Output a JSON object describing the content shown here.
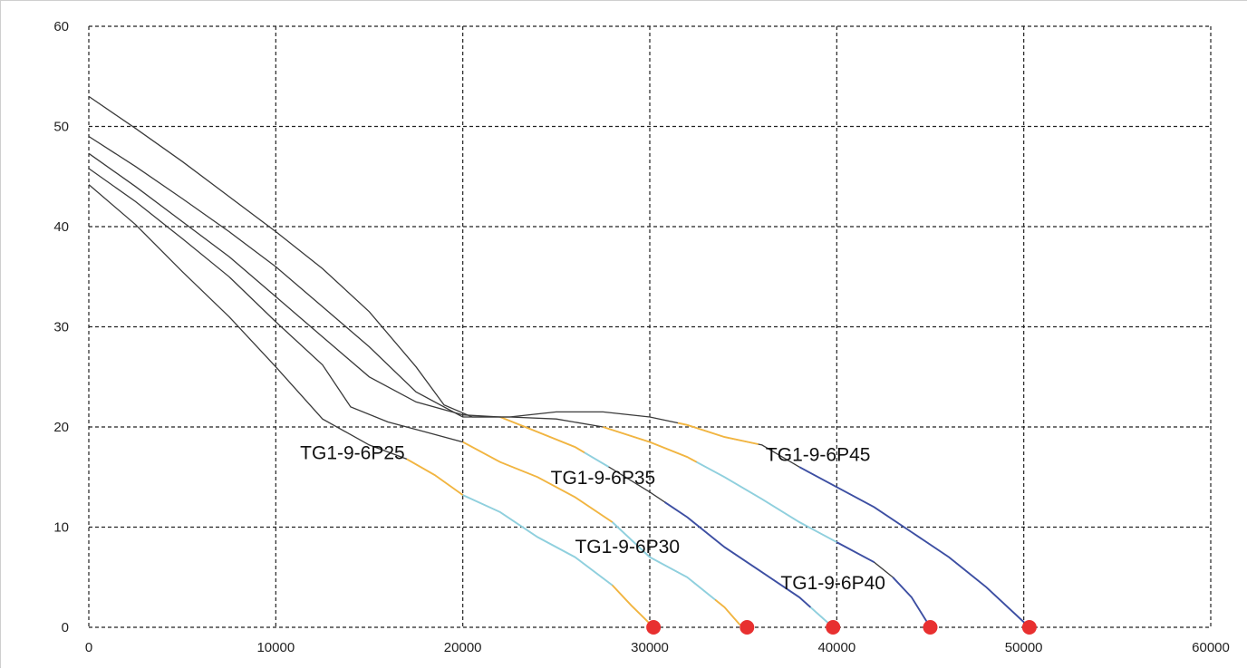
{
  "chart_data": {
    "type": "line",
    "title": "",
    "xlabel": "",
    "ylabel": "",
    "xlim": [
      0,
      60000
    ],
    "ylim": [
      0,
      60
    ],
    "x_ticks": [
      0,
      10000,
      20000,
      30000,
      40000,
      50000,
      60000
    ],
    "y_ticks": [
      0,
      10,
      20,
      30,
      40,
      50,
      60
    ],
    "grid": true,
    "colors": {
      "base": "#3a3a3a",
      "orange": "#f2b540",
      "cyan": "#8fd0de",
      "blue": "#3d4fa3",
      "marker": "#e83030"
    },
    "series": [
      {
        "name": "TG1-9-6P25",
        "points": [
          [
            0,
            44.2
          ],
          [
            2500,
            40.2
          ],
          [
            5000,
            35.5
          ],
          [
            7500,
            31
          ],
          [
            10000,
            26
          ],
          [
            12500,
            20.8
          ],
          [
            15000,
            18.2
          ],
          [
            17000,
            16.8
          ],
          [
            18500,
            15.2
          ],
          [
            20000,
            13.2
          ],
          [
            22000,
            11.5
          ],
          [
            24000,
            9
          ],
          [
            26000,
            7
          ],
          [
            28000,
            4.2
          ],
          [
            29000,
            2.2
          ],
          [
            30200,
            0
          ]
        ],
        "segments": [
          {
            "color": "orange",
            "from": 17000,
            "to": 20000
          },
          {
            "color": "cyan",
            "from": 20000,
            "to": 28000
          },
          {
            "color": "orange",
            "from": 28000,
            "to": 30200
          }
        ],
        "label": {
          "text": "TG1-9-6P25",
          "x": 11300,
          "y": 16.8
        },
        "end_marker": [
          30200,
          0
        ]
      },
      {
        "name": "TG1-9-6P30",
        "points": [
          [
            0,
            45.8
          ],
          [
            2500,
            42.5
          ],
          [
            5000,
            38.8
          ],
          [
            7500,
            35
          ],
          [
            10000,
            30.5
          ],
          [
            12500,
            26.2
          ],
          [
            14000,
            22
          ],
          [
            16000,
            20.5
          ],
          [
            18000,
            19.5
          ],
          [
            20000,
            18.5
          ],
          [
            22000,
            16.5
          ],
          [
            24000,
            15
          ],
          [
            26000,
            13
          ],
          [
            28000,
            10.5
          ],
          [
            30000,
            7
          ],
          [
            32000,
            5
          ],
          [
            34000,
            2
          ],
          [
            34800,
            0.3
          ],
          [
            35200,
            0
          ]
        ],
        "segments": [
          {
            "color": "orange",
            "from": 20000,
            "to": 28000
          },
          {
            "color": "cyan",
            "from": 28000,
            "to": 33500
          },
          {
            "color": "orange",
            "from": 33500,
            "to": 35200
          }
        ],
        "label": {
          "text": "TG1-9-6P30",
          "x": 26000,
          "y": 7.4
        },
        "end_marker": [
          35200,
          0
        ]
      },
      {
        "name": "TG1-9-6P35",
        "points": [
          [
            0,
            47.3
          ],
          [
            2500,
            44
          ],
          [
            5000,
            40.5
          ],
          [
            7500,
            37
          ],
          [
            10000,
            33
          ],
          [
            12500,
            29
          ],
          [
            15000,
            25
          ],
          [
            17500,
            22.5
          ],
          [
            20000,
            21.2
          ],
          [
            22000,
            21
          ],
          [
            24000,
            19.5
          ],
          [
            26000,
            18
          ],
          [
            28000,
            15.8
          ],
          [
            30000,
            13.5
          ],
          [
            32000,
            11
          ],
          [
            34000,
            8
          ],
          [
            36000,
            5.5
          ],
          [
            38000,
            3
          ],
          [
            39800,
            0
          ]
        ],
        "segments": [
          {
            "color": "orange",
            "from": 22000,
            "to": 26500
          },
          {
            "color": "cyan",
            "from": 26500,
            "to": 27800
          },
          {
            "color": "blue",
            "from": 30800,
            "to": 38600
          },
          {
            "color": "cyan",
            "from": 38600,
            "to": 39800
          }
        ],
        "label": {
          "text": "TG1-9-6P35",
          "x": 24700,
          "y": 14.3
        },
        "end_marker": [
          39800,
          0
        ]
      },
      {
        "name": "TG1-9-6P40",
        "points": [
          [
            0,
            49
          ],
          [
            2500,
            46
          ],
          [
            5000,
            42.8
          ],
          [
            7500,
            39.5
          ],
          [
            10000,
            36
          ],
          [
            12500,
            32
          ],
          [
            15000,
            28
          ],
          [
            17500,
            23.5
          ],
          [
            20000,
            21
          ],
          [
            22500,
            21
          ],
          [
            25000,
            20.8
          ],
          [
            27500,
            20
          ],
          [
            30000,
            18.5
          ],
          [
            32000,
            17
          ],
          [
            34000,
            15
          ],
          [
            36000,
            12.8
          ],
          [
            38000,
            10.5
          ],
          [
            40000,
            8.5
          ],
          [
            42000,
            6.5
          ],
          [
            43000,
            5
          ],
          [
            44000,
            3
          ],
          [
            45000,
            0
          ]
        ],
        "segments": [
          {
            "color": "orange",
            "from": 27500,
            "to": 32500
          },
          {
            "color": "cyan",
            "from": 32500,
            "to": 40000
          },
          {
            "color": "blue",
            "from": 40000,
            "to": 42000
          },
          {
            "color": "blue",
            "from": 43000,
            "to": 45000
          }
        ],
        "label": {
          "text": "TG1-9-6P40",
          "x": 37000,
          "y": 3.8
        },
        "end_marker": [
          45000,
          0
        ]
      },
      {
        "name": "TG1-9-6P45",
        "points": [
          [
            0,
            53
          ],
          [
            2500,
            49.8
          ],
          [
            5000,
            46.5
          ],
          [
            7500,
            43
          ],
          [
            10000,
            39.5
          ],
          [
            12500,
            35.8
          ],
          [
            15000,
            31.5
          ],
          [
            17500,
            26
          ],
          [
            19000,
            22.2
          ],
          [
            20500,
            21
          ],
          [
            22500,
            21
          ],
          [
            25000,
            21.5
          ],
          [
            27500,
            21.5
          ],
          [
            30000,
            21
          ],
          [
            32000,
            20.2
          ],
          [
            34000,
            19
          ],
          [
            36000,
            18.2
          ],
          [
            38000,
            16
          ],
          [
            40000,
            14
          ],
          [
            42000,
            12
          ],
          [
            44000,
            9.5
          ],
          [
            46000,
            7
          ],
          [
            48000,
            4
          ],
          [
            50300,
            0
          ]
        ],
        "segments": [
          {
            "color": "orange",
            "from": 31500,
            "to": 35800
          },
          {
            "color": "blue",
            "from": 38000,
            "to": 50300
          }
        ],
        "label": {
          "text": "TG1-9-6P45",
          "x": 36200,
          "y": 16.6
        },
        "end_marker": [
          50300,
          0
        ]
      }
    ]
  }
}
